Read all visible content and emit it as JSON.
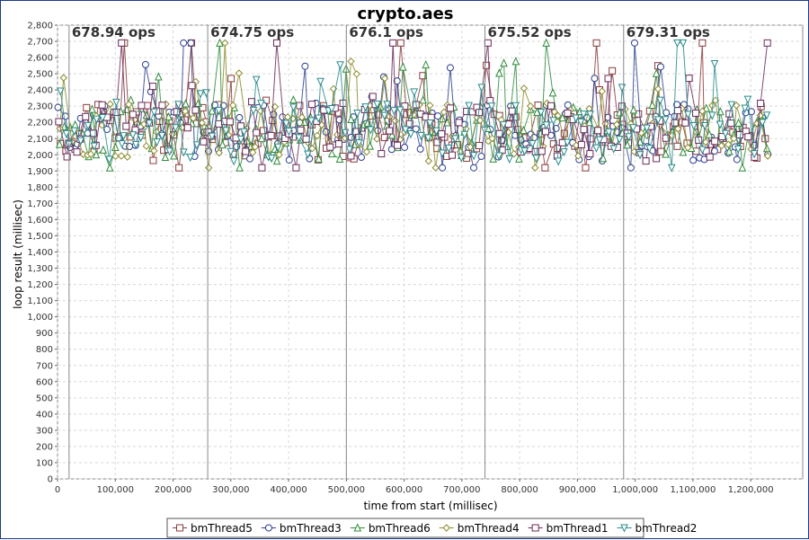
{
  "chart_data": {
    "type": "scatter",
    "title": "crypto.aes",
    "xlabel": "time from start (millisec)",
    "ylabel": "loop result (millisec)",
    "xlim": [
      0,
      1290000
    ],
    "ylim": [
      0,
      2800
    ],
    "x_ticks": [
      0,
      100000,
      200000,
      300000,
      400000,
      500000,
      600000,
      700000,
      800000,
      900000,
      1000000,
      1100000,
      1200000
    ],
    "x_tick_labels": [
      "0",
      "100,000",
      "200,000",
      "300,000",
      "400,000",
      "500,000",
      "600,000",
      "700,000",
      "800,000",
      "900,000",
      "1,000,000",
      "1,100,000",
      "1,200,000"
    ],
    "y_ticks": [
      0,
      100,
      200,
      300,
      400,
      500,
      600,
      700,
      800,
      900,
      1000,
      1100,
      1200,
      1300,
      1400,
      1500,
      1600,
      1700,
      1800,
      1900,
      2000,
      2100,
      2200,
      2300,
      2400,
      2500,
      2600,
      2700,
      2800
    ],
    "y_tick_labels": [
      "0",
      "100",
      "200",
      "300",
      "400",
      "500",
      "600",
      "700",
      "800",
      "900",
      "1,000",
      "1,100",
      "1,200",
      "1,300",
      "1,400",
      "1,500",
      "1,600",
      "1,700",
      "1,800",
      "1,900",
      "2,000",
      "2,100",
      "2,200",
      "2,300",
      "2,400",
      "2,500",
      "2,600",
      "2,700",
      "2,800"
    ],
    "grid": true,
    "legend_position": "bottom",
    "series": [
      {
        "name": "bmThread5",
        "marker": "square",
        "color": "#8b3a3a"
      },
      {
        "name": "bmThread3",
        "marker": "circle",
        "color": "#2c3e8f"
      },
      {
        "name": "bmThread6",
        "marker": "triangle-up",
        "color": "#2e8b3a"
      },
      {
        "name": "bmThread4",
        "marker": "diamond",
        "color": "#8b8b2a"
      },
      {
        "name": "bmThread1",
        "marker": "square",
        "color": "#6b2a5a"
      },
      {
        "name": "bmThread2",
        "marker": "triangle-down",
        "color": "#2a8b8b"
      }
    ],
    "series_value_summary": {
      "x_range": [
        0,
        1232000
      ],
      "typical_y_range": [
        1950,
        2350
      ],
      "occasional_peak_y": 2690,
      "minimum_y": 1920
    },
    "markers": [
      {
        "x": 20000,
        "label": "678.94 ops"
      },
      {
        "x": 260000,
        "label": "674.75 ops"
      },
      {
        "x": 500000,
        "label": "676.1 ops"
      },
      {
        "x": 740000,
        "label": "675.52 ops"
      },
      {
        "x": 980000,
        "label": "679.31 ops"
      }
    ]
  }
}
